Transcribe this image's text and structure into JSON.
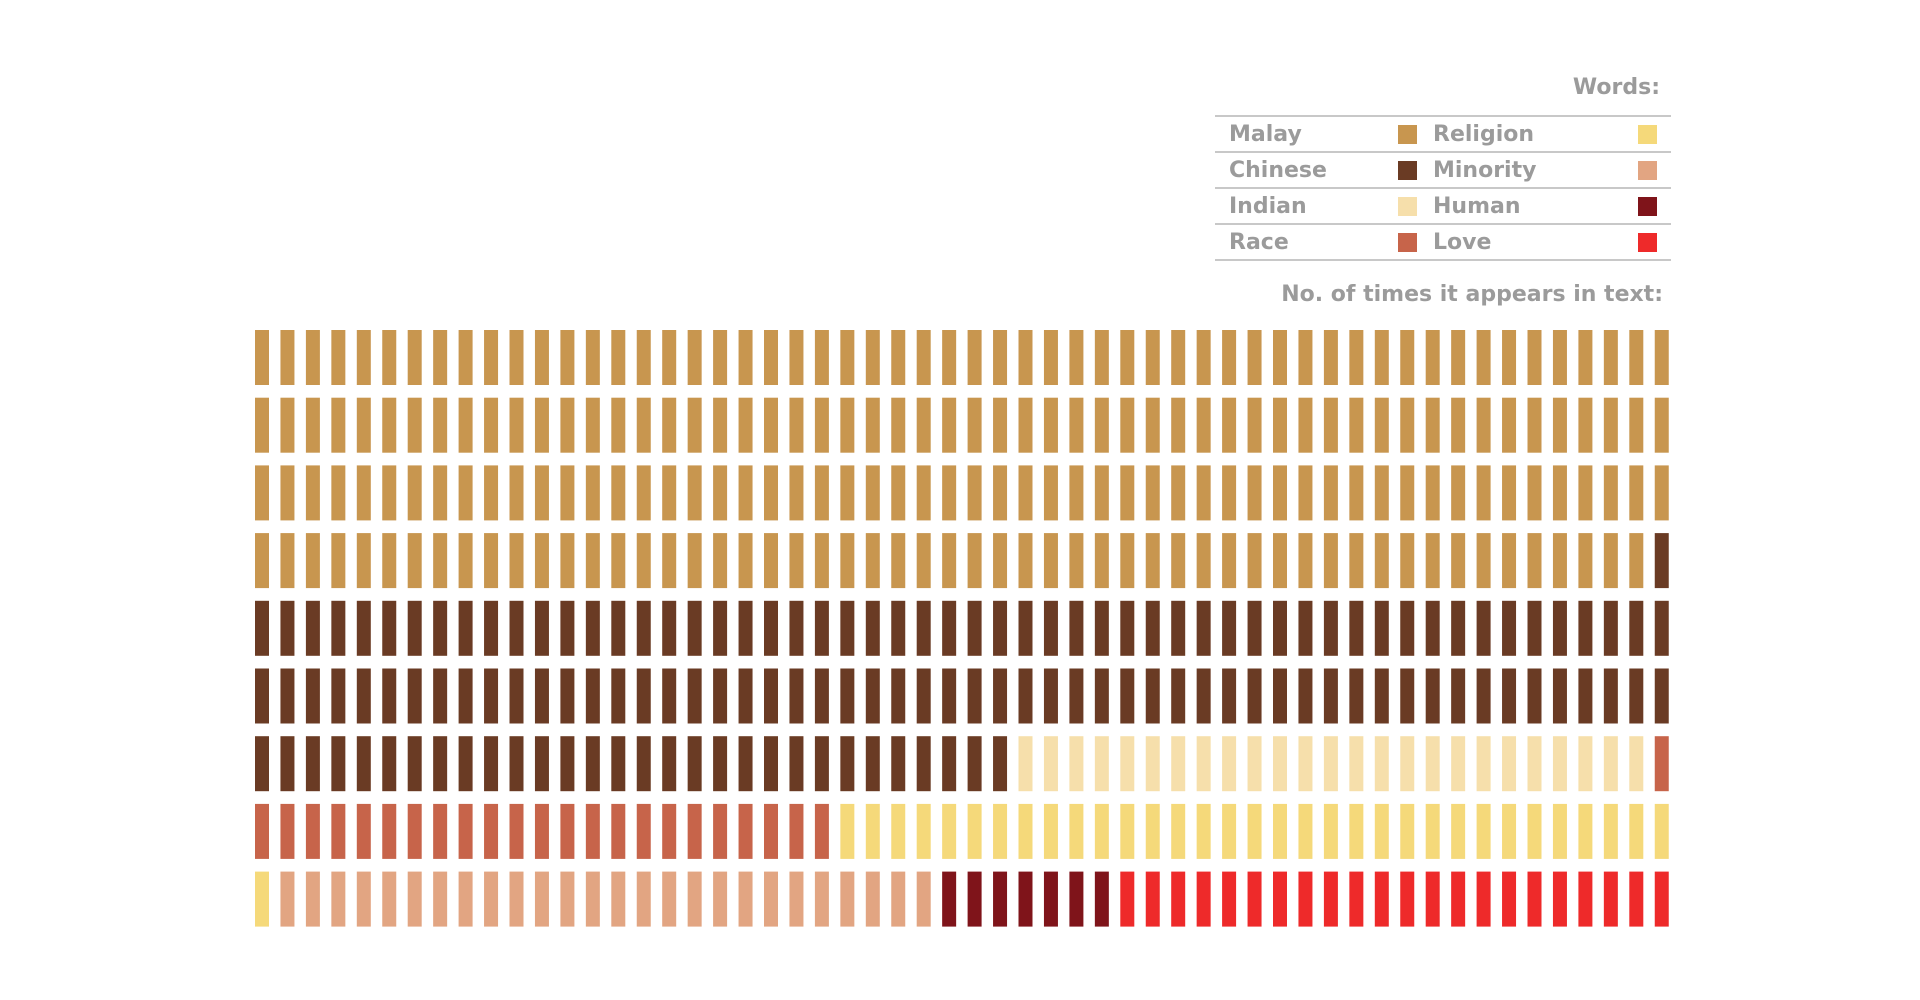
{
  "legend": {
    "title": "Words:",
    "items": [
      {
        "label": "Malay",
        "color": "#c8964f"
      },
      {
        "label": "Religion",
        "color": "#f5d97a"
      },
      {
        "label": "Chinese",
        "color": "#6a3b24"
      },
      {
        "label": "Minority",
        "color": "#e2a582"
      },
      {
        "label": "Indian",
        "color": "#f6dfab"
      },
      {
        "label": "Human",
        "color": "#7f141a"
      },
      {
        "label": "Race",
        "color": "#c7644a"
      },
      {
        "label": "Love",
        "color": "#ee2a2a"
      }
    ]
  },
  "count_title": "No. of times it appears in text:",
  "chart_data": {
    "type": "waffle",
    "title": "Words:",
    "subtitle": "No. of times it appears in text:",
    "units_per_row": 56,
    "rows": 9,
    "series": [
      {
        "name": "Malay",
        "value": 223,
        "color": "#c8964f"
      },
      {
        "name": "Chinese",
        "value": 143,
        "color": "#6a3b24"
      },
      {
        "name": "Indian",
        "value": 25,
        "color": "#f6dfab"
      },
      {
        "name": "Race",
        "value": 24,
        "color": "#c7644a"
      },
      {
        "name": "Religion",
        "value": 34,
        "color": "#f5d97a"
      },
      {
        "name": "Minority",
        "value": 26,
        "color": "#e2a582"
      },
      {
        "name": "Human",
        "value": 7,
        "color": "#7f141a"
      },
      {
        "name": "Love",
        "value": 22,
        "color": "#ee2a2a"
      }
    ]
  }
}
